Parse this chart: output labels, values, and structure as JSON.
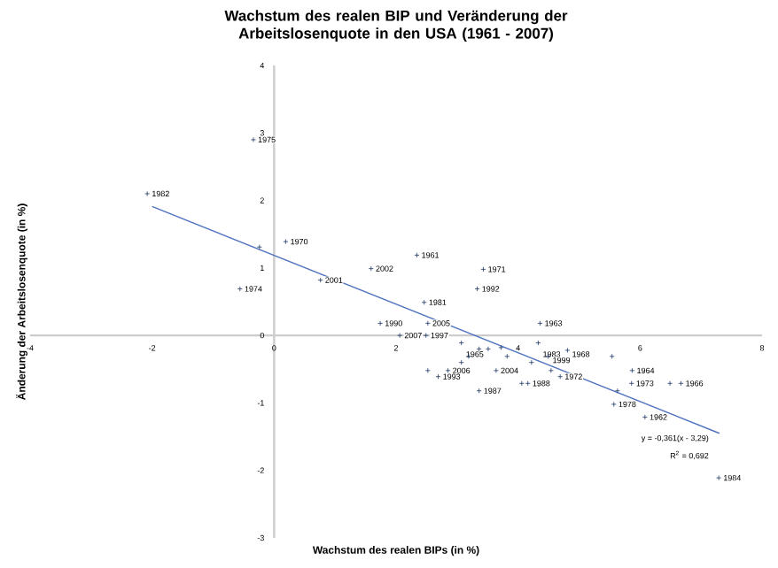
{
  "chart_data": {
    "type": "scatter",
    "title": "Wachstum des realen BIP und Veränderung der Arbeitslosenquote in den USA (1961 - 2007)",
    "xlabel": "Wachstum des realen BIPs (in %)",
    "ylabel": "Änderung der Arbeitslosenquote (in %)",
    "xlim": [
      -4,
      8
    ],
    "xticks": [
      -4,
      -2,
      0,
      2,
      4,
      6,
      8
    ],
    "ylim": [
      -3,
      4
    ],
    "yticks": [
      -3,
      -2,
      -1,
      0,
      1,
      2,
      3,
      4
    ],
    "marker": "cross",
    "series": [
      {
        "type": "scatter",
        "color": "#1f3864",
        "x": [
          -0.34,
          -2.08,
          -0.24,
          0.19,
          -0.56,
          0.76,
          1.59,
          2.34,
          3.43,
          3.33,
          2.46,
          1.74,
          2.52,
          4.36,
          2.06,
          2.49,
          3.07,
          3.36,
          3.51,
          3.72,
          4.33,
          4.81,
          3.19,
          3.82,
          4.49,
          5.54,
          3.07,
          4.22,
          2.85,
          2.52,
          3.64,
          4.54,
          5.87,
          2.69,
          4.69,
          4.16,
          4.06,
          5.86,
          6.67,
          6.49,
          3.36,
          5.63,
          5.57,
          6.08,
          7.29
        ],
        "values": [
          2.9,
          2.1,
          1.31,
          1.39,
          0.69,
          0.82,
          0.99,
          1.19,
          0.98,
          0.69,
          0.49,
          0.18,
          0.18,
          0.18,
          0.0,
          0.0,
          -0.11,
          -0.2,
          -0.2,
          -0.18,
          -0.11,
          -0.22,
          -0.31,
          -0.31,
          -0.31,
          -0.31,
          -0.4,
          -0.4,
          -0.52,
          -0.52,
          -0.52,
          -0.52,
          -0.52,
          -0.61,
          -0.61,
          -0.71,
          -0.71,
          -0.71,
          -0.71,
          -0.71,
          -0.82,
          -0.82,
          -1.02,
          -1.21,
          -2.11
        ]
      },
      {
        "type": "line",
        "color": "#4f72be",
        "marker": "none",
        "x": [
          -2,
          7.3
        ],
        "values": [
          1.91,
          -1.45
        ]
      }
    ],
    "annotations": [
      {
        "text": "1975",
        "x": -0.34,
        "y": 2.9
      },
      {
        "text": "1982",
        "x": -2.08,
        "y": 2.1
      },
      {
        "text": "1970",
        "x": 0.19,
        "y": 1.39
      },
      {
        "text": "1974",
        "x": -0.56,
        "y": 0.69
      },
      {
        "text": "2001",
        "x": 0.76,
        "y": 0.82
      },
      {
        "text": "2002",
        "x": 1.59,
        "y": 0.99
      },
      {
        "text": "1961",
        "x": 2.34,
        "y": 1.19
      },
      {
        "text": "1971",
        "x": 3.43,
        "y": 0.98
      },
      {
        "text": "1992",
        "x": 3.33,
        "y": 0.69
      },
      {
        "text": "1981",
        "x": 2.46,
        "y": 0.49
      },
      {
        "text": "1990",
        "x": 1.74,
        "y": 0.18
      },
      {
        "text": "2005",
        "x": 2.52,
        "y": 0.18
      },
      {
        "text": "1963",
        "x": 4.36,
        "y": 0.18
      },
      {
        "text": "2007",
        "x": 2.06,
        "y": 0.0
      },
      {
        "text": "1997",
        "x": 2.49,
        "y": 0.0
      },
      {
        "text": "1965",
        "x": 3.07,
        "y": -0.11
      },
      {
        "text": "1983",
        "x": 4.33,
        "y": -0.11
      },
      {
        "text": "1968",
        "x": 4.81,
        "y": -0.22
      },
      {
        "text": "1999",
        "x": 4.49,
        "y": -0.31
      },
      {
        "text": "2006",
        "x": 2.85,
        "y": -0.52
      },
      {
        "text": "2004",
        "x": 3.64,
        "y": -0.52
      },
      {
        "text": "1964",
        "x": 5.87,
        "y": -0.52
      },
      {
        "text": "1993",
        "x": 2.69,
        "y": -0.61
      },
      {
        "text": "1972",
        "x": 4.69,
        "y": -0.61
      },
      {
        "text": "1988",
        "x": 4.16,
        "y": -0.71
      },
      {
        "text": "1973",
        "x": 5.86,
        "y": -0.71
      },
      {
        "text": "1966",
        "x": 6.67,
        "y": -0.71
      },
      {
        "text": "1987",
        "x": 3.36,
        "y": -0.82
      },
      {
        "text": "1978",
        "x": 5.57,
        "y": -1.02
      },
      {
        "text": "1962",
        "x": 6.08,
        "y": -1.21
      },
      {
        "text": "1984",
        "x": 7.29,
        "y": -2.11
      },
      "y = -0,361(x - 3,29)",
      "R$^{2}$ = 0,692"
    ]
  }
}
